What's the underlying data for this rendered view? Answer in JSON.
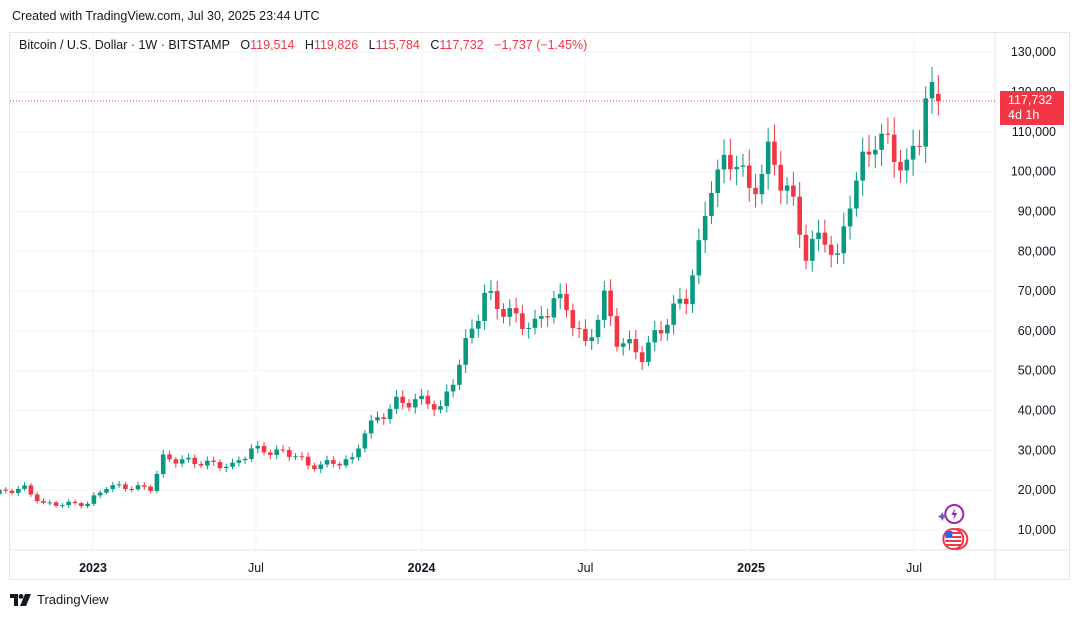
{
  "header": {
    "caption": "Created with TradingView.com, Jul 30, 2025 23:44 UTC"
  },
  "legend": {
    "symbol": "Bitcoin / U.S. Dollar · 1W · BITSTAMP",
    "open_label": "O",
    "open_value": "119,514",
    "high_label": "H",
    "high_value": "119,826",
    "low_label": "L",
    "low_value": "115,784",
    "close_label": "C",
    "close_value": "117,732",
    "change": "−1,737 (−1.45%)"
  },
  "price_tag": {
    "price": "117,732",
    "countdown": "4d 1h"
  },
  "footer": {
    "brand": "TradingView"
  },
  "colors": {
    "up": "#089981",
    "down": "#f23645",
    "grid": "#f0f3fa",
    "text": "#131722"
  },
  "icons": [
    "spark-event-icon",
    "us-flag-event-icon",
    "tradingview-logo-icon"
  ],
  "chart_data": {
    "type": "candlestick",
    "interval": "1W",
    "yaxis": {
      "ticks": [
        10000,
        20000,
        30000,
        40000,
        50000,
        60000,
        70000,
        80000,
        90000,
        100000,
        110000,
        120000,
        130000
      ],
      "tick_labels": [
        "10,000",
        "20,000",
        "30,000",
        "40,000",
        "50,000",
        "60,000",
        "70,000",
        "80,000",
        "90,000",
        "100,000",
        "110,000",
        "120,000",
        "130,000"
      ],
      "position": "right"
    },
    "xaxis": {
      "ticks": [
        "2023-01-01",
        "2023-07-01",
        "2024-01-01",
        "2024-07-01",
        "2025-01-01",
        "2025-07-01"
      ],
      "tick_labels": [
        "2023",
        "Jul",
        "2024",
        "Jul",
        "2025",
        "Jul"
      ],
      "bold_labels": [
        "2023",
        "2024",
        "2025"
      ]
    },
    "last_price": 117732,
    "grid": true,
    "keypoints": [
      {
        "date": "2022-09-05",
        "close": 19000
      },
      {
        "date": "2022-10-17",
        "close": 20500
      },
      {
        "date": "2022-11-07",
        "close": 16500
      },
      {
        "date": "2022-12-26",
        "close": 16600
      },
      {
        "date": "2023-01-16",
        "close": 21000
      },
      {
        "date": "2023-03-06",
        "close": 20500
      },
      {
        "date": "2023-03-20",
        "close": 28000
      },
      {
        "date": "2023-06-05",
        "close": 26000
      },
      {
        "date": "2023-06-26",
        "close": 30300
      },
      {
        "date": "2023-08-14",
        "close": 29000
      },
      {
        "date": "2023-08-28",
        "close": 26000
      },
      {
        "date": "2023-10-16",
        "close": 27500
      },
      {
        "date": "2023-10-30",
        "close": 35000
      },
      {
        "date": "2023-12-04",
        "close": 42000
      },
      {
        "date": "2024-01-08",
        "close": 42500
      },
      {
        "date": "2024-01-22",
        "close": 40000
      },
      {
        "date": "2024-02-12",
        "close": 52000
      },
      {
        "date": "2024-03-11",
        "close": 69000
      },
      {
        "date": "2024-04-15",
        "close": 63000
      },
      {
        "date": "2024-05-06",
        "close": 61000
      },
      {
        "date": "2024-05-27",
        "close": 68000
      },
      {
        "date": "2024-06-10",
        "close": 66000
      },
      {
        "date": "2024-07-01",
        "close": 56000
      },
      {
        "date": "2024-07-22",
        "close": 68000
      },
      {
        "date": "2024-08-05",
        "close": 58000
      },
      {
        "date": "2024-09-02",
        "close": 54000
      },
      {
        "date": "2024-09-30",
        "close": 63000
      },
      {
        "date": "2024-10-21",
        "close": 69000
      },
      {
        "date": "2024-11-04",
        "close": 80000
      },
      {
        "date": "2024-11-18",
        "close": 98000
      },
      {
        "date": "2024-12-16",
        "close": 104000
      },
      {
        "date": "2024-12-30",
        "close": 94000
      },
      {
        "date": "2025-01-20",
        "close": 104000
      },
      {
        "date": "2025-02-10",
        "close": 96000
      },
      {
        "date": "2025-03-03",
        "close": 80000
      },
      {
        "date": "2025-03-24",
        "close": 84000
      },
      {
        "date": "2025-04-07",
        "close": 77000
      },
      {
        "date": "2025-04-21",
        "close": 94000
      },
      {
        "date": "2025-05-19",
        "close": 109000
      },
      {
        "date": "2025-06-09",
        "close": 105000
      },
      {
        "date": "2025-06-23",
        "close": 100000
      },
      {
        "date": "2025-07-07",
        "close": 110000
      },
      {
        "date": "2025-07-14",
        "close": 119000
      },
      {
        "date": "2025-07-28",
        "close": 117732
      }
    ]
  }
}
